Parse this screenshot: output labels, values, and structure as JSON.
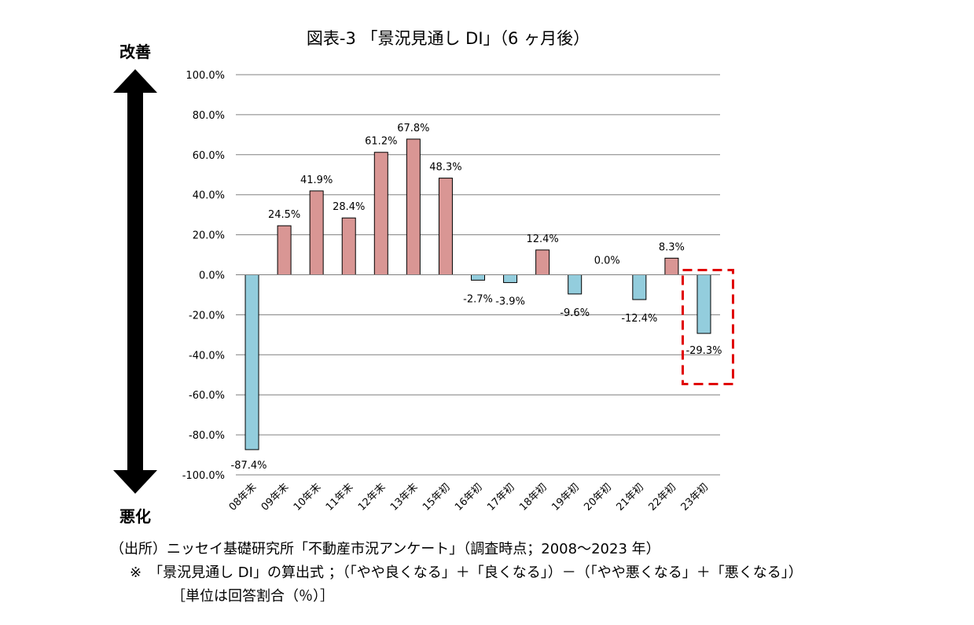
{
  "chart_data": {
    "type": "bar",
    "title": "図表-3 「景況見通し DI」（6 ヶ月後）",
    "categories": [
      "08年末",
      "09年末",
      "10年末",
      "11年末",
      "12年末",
      "13年末",
      "15年初",
      "16年初",
      "17年初",
      "18年初",
      "19年初",
      "20年初",
      "21年初",
      "22年初",
      "23年初"
    ],
    "values": [
      -87.4,
      24.5,
      41.9,
      28.4,
      61.2,
      67.8,
      48.3,
      -2.7,
      -3.9,
      12.4,
      -9.6,
      0.0,
      -12.4,
      8.3,
      -29.3
    ],
    "data_labels": [
      "-87.4%",
      "24.5%",
      "41.9%",
      "28.4%",
      "61.2%",
      "67.8%",
      "48.3%",
      "-2.7%",
      "-3.9%",
      "12.4%",
      "-9.6%",
      "0.0%",
      "-12.4%",
      "8.3%",
      "-29.3%"
    ],
    "ylim": [
      -100,
      100
    ],
    "yticks": [
      100,
      80,
      60,
      40,
      20,
      0,
      -20,
      -40,
      -60,
      -80,
      -100
    ],
    "ytick_labels": [
      "100.0%",
      "80.0%",
      "60.0%",
      "40.0%",
      "20.0%",
      "0.0%",
      "-20.0%",
      "-40.0%",
      "-60.0%",
      "-80.0%",
      "-100.0%"
    ],
    "grid": true,
    "highlight_category": "23年初",
    "arrow_top_label": "改善",
    "arrow_bottom_label": "悪化",
    "colors": {
      "positive": "#D99694",
      "negative": "#93CDDD",
      "highlight": "#E00000",
      "grid": "#808080",
      "arrow": "#000000"
    }
  },
  "notes": {
    "source": "（出所）ニッセイ基礎研究所「不動産市況アンケート」（調査時点；2008～2023 年）",
    "formula": "※　「景況見通し DI」の算出式 ；（「やや良くなる」＋「良くなる」）－（「やや悪くなる」＋「悪くなる」）",
    "unit": "［単位は回答割合（％）］"
  }
}
